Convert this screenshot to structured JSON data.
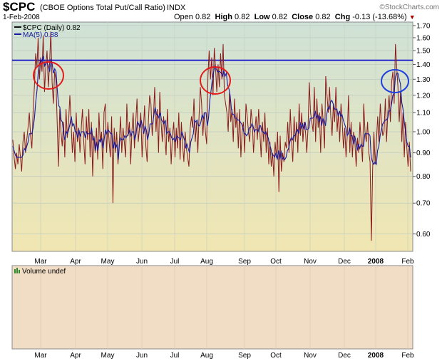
{
  "header": {
    "ticker": "$CPC",
    "description": "(CBOE Options Total Put/Call Ratio)",
    "exchange": "INDX",
    "brand": "©StockCharts.com",
    "date": "1-Feb-2008",
    "open_label": "Open",
    "open_value": "0.82",
    "high_label": "High",
    "high_value": "0.82",
    "low_label": "Low",
    "low_value": "0.82",
    "close_label": "Close",
    "close_value": "0.82",
    "chg_label": "Chg",
    "chg_value": "-0.13 (-13.68%)",
    "chg_icon": "down-triangle-icon"
  },
  "legend": {
    "series1": "$CPC (Daily) 0.82",
    "series2": "MA(5) 0.88",
    "volume": "Volume undef"
  },
  "colors": {
    "cpc_line": "#8b1a1a",
    "ma_line": "#1a1aa0",
    "threshold_line": "#0000c8",
    "red_circle": "#e41a1a",
    "blue_circle": "#1f3fe0",
    "bg_top": "#cfe2d6",
    "bg_bottom": "#f1e6b2",
    "volume_bg": "#f1dcc5"
  },
  "chart_data": {
    "type": "line",
    "scale": "log",
    "ylim": [
      0.55,
      1.73
    ],
    "yticks": [
      "1.70",
      "1.60",
      "1.50",
      "1.40",
      "1.30",
      "1.20",
      "1.10",
      "1.00",
      "0.90",
      "0.80",
      "0.70",
      "0.60"
    ],
    "xticks": [
      "Mar",
      "Apr",
      "May",
      "Jun",
      "Jul",
      "Aug",
      "Sep",
      "Oct",
      "Nov",
      "Dec",
      "2008",
      "Feb"
    ],
    "threshold": 1.43,
    "series": [
      {
        "name": "$CPC (Daily)",
        "values": [
          0.96,
          0.88,
          0.83,
          0.9,
          0.85,
          0.94,
          0.88,
          0.82,
          0.95,
          1.0,
          0.9,
          0.96,
          1.02,
          1.1,
          0.98,
          0.92,
          1.1,
          1.25,
          1.48,
          1.38,
          1.6,
          1.3,
          1.45,
          1.35,
          1.62,
          1.22,
          1.38,
          1.5,
          1.25,
          1.4,
          1.65,
          1.28,
          1.15,
          1.35,
          1.3,
          1.05,
          0.84,
          1.12,
          1.0,
          0.93,
          1.05,
          0.88,
          1.12,
          0.97,
          1.05,
          1.2,
          1.05,
          0.9,
          1.0,
          0.86,
          1.1,
          0.95,
          1.02,
          0.9,
          1.02,
          1.12,
          0.95,
          0.85,
          1.08,
          0.96,
          1.12,
          0.88,
          1.05,
          0.8,
          0.98,
          0.9,
          1.02,
          0.87,
          1.1,
          0.95,
          1.0,
          0.83,
          1.1,
          1.15,
          0.9,
          1.05,
          0.95,
          0.88,
          1.08,
          0.7,
          1.02,
          0.9,
          1.0,
          0.85,
          0.95,
          1.08,
          0.9,
          1.02,
          0.95,
          0.88,
          1.15,
          0.98,
          1.05,
          0.85,
          1.0,
          1.1,
          0.92,
          1.05,
          1.18,
          0.95,
          1.02,
          1.1,
          0.88,
          1.0,
          1.14,
          0.93,
          0.86,
          1.05,
          1.2,
          1.15,
          0.98,
          1.08,
          1.25,
          1.0,
          1.12,
          0.9,
          1.22,
          1.05,
          0.95,
          1.08,
          0.98,
          0.89,
          1.12,
          0.95,
          1.02,
          0.85,
          0.98,
          1.05,
          0.88,
          1.02,
          0.92,
          1.1,
          0.87,
          1.05,
          0.94,
          0.86,
          1.0,
          0.92,
          0.88,
          0.84,
          1.02,
          1.08,
          1.02,
          1.18,
          0.95,
          1.05,
          0.9,
          1.08,
          1.25,
          1.15,
          0.98,
          1.1,
          1.0,
          0.94,
          1.32,
          1.5,
          1.3,
          1.45,
          1.2,
          1.52,
          1.38,
          1.22,
          1.4,
          1.25,
          1.48,
          1.3,
          1.55,
          1.2,
          1.15,
          1.1,
          1.0,
          1.22,
          1.05,
          1.12,
          0.95,
          1.18,
          1.02,
          1.1,
          0.92,
          1.12,
          0.88,
          1.0,
          1.05,
          0.9,
          1.15,
          1.08,
          1.0,
          0.95,
          1.12,
          1.05,
          0.9,
          1.0,
          1.08,
          0.96,
          1.12,
          1.0,
          0.88,
          1.05,
          0.95,
          1.1,
          0.9,
          1.02,
          0.85,
          0.95,
          0.84,
          0.9,
          0.8,
          0.95,
          0.88,
          1.0,
          0.74,
          0.98,
          0.82,
          0.9,
          0.86,
          0.95,
          0.92,
          1.05,
          0.9,
          1.12,
          0.95,
          0.86,
          1.08,
          0.95,
          1.05,
          0.9,
          1.15,
          0.98,
          1.1,
          0.95,
          1.05,
          1.0,
          0.9,
          1.02,
          1.28,
          1.1,
          1.05,
          1.0,
          1.25,
          0.95,
          1.18,
          1.02,
          1.1,
          0.9,
          1.15,
          1.05,
          0.92,
          1.32,
          1.2,
          1.1,
          1.25,
          1.08,
          0.98,
          1.15,
          1.05,
          1.25,
          1.0,
          1.1,
          0.95,
          1.15,
          1.05,
          0.92,
          1.02,
          0.88,
          0.98,
          1.2,
          0.9,
          1.05,
          0.88,
          1.0,
          0.95,
          0.84,
          0.97,
          0.9,
          1.05,
          0.95,
          0.86,
          1.15,
          1.0,
          0.95,
          1.05,
          0.9,
          0.86,
          0.58,
          0.83,
          1.0,
          0.85,
          0.95,
          1.08,
          0.95,
          1.15,
          1.05,
          0.98,
          1.0,
          1.18,
          0.95,
          1.1,
          1.2,
          1.05,
          1.28,
          1.35,
          1.15,
          1.55,
          1.38,
          1.25,
          1.05,
          1.22,
          0.95,
          1.1,
          0.88,
          1.05,
          0.92,
          0.84,
          0.95,
          0.82
        ]
      },
      {
        "name": "MA(5)",
        "values": [
          0.93,
          0.91,
          0.89,
          0.88,
          0.88,
          0.88,
          0.88,
          0.88,
          0.89,
          0.92,
          0.91,
          0.93,
          0.95,
          0.99,
          0.99,
          0.99,
          1.02,
          1.07,
          1.16,
          1.23,
          1.35,
          1.4,
          1.44,
          1.42,
          1.46,
          1.39,
          1.41,
          1.41,
          1.39,
          1.35,
          1.44,
          1.4,
          1.34,
          1.37,
          1.35,
          1.23,
          1.14,
          1.13,
          1.06,
          1.05,
          0.99,
          0.96,
          1.0,
          0.99,
          1.01,
          1.04,
          1.08,
          1.03,
          1.04,
          1.0,
          1.0,
          0.97,
          1.01,
          0.98,
          1.0,
          1.0,
          1.0,
          0.97,
          1.0,
          0.99,
          0.99,
          0.99,
          1.02,
          0.96,
          0.97,
          0.91,
          0.95,
          0.91,
          0.96,
          0.95,
          0.97,
          0.92,
          0.97,
          1.01,
          0.99,
          1.01,
          1.0,
          0.99,
          0.99,
          0.92,
          0.95,
          0.92,
          0.94,
          0.87,
          0.95,
          0.97,
          0.96,
          0.96,
          0.98,
          0.97,
          0.98,
          0.99,
          1.01,
          0.98,
          1.0,
          1.0,
          0.96,
          0.99,
          1.05,
          1.04,
          1.02,
          1.06,
          1.03,
          0.99,
          1.03,
          1.01,
          0.96,
          0.99,
          1.04,
          1.04,
          1.04,
          1.09,
          1.13,
          1.09,
          1.09,
          1.07,
          1.1,
          1.06,
          1.05,
          1.04,
          1.06,
          0.99,
          1.0,
          1.0,
          0.99,
          0.97,
          0.96,
          0.97,
          0.95,
          0.98,
          0.97,
          0.97,
          0.96,
          1.0,
          0.98,
          0.96,
          0.92,
          0.94,
          0.92,
          0.9,
          0.95,
          0.97,
          0.99,
          1.06,
          1.05,
          1.06,
          1.03,
          1.03,
          1.05,
          1.09,
          1.07,
          1.1,
          1.1,
          1.03,
          1.07,
          1.17,
          1.23,
          1.3,
          1.35,
          1.39,
          1.37,
          1.35,
          1.35,
          1.35,
          1.34,
          1.32,
          1.36,
          1.32,
          1.34,
          1.26,
          1.24,
          1.2,
          1.12,
          1.09,
          1.09,
          1.07,
          1.07,
          1.06,
          1.06,
          1.05,
          1.04,
          1.02,
          0.99,
          0.99,
          0.98,
          0.99,
          1.02,
          1.02,
          1.04,
          1.03,
          1.0,
          1.01,
          1.01,
          1.0,
          1.03,
          1.03,
          1.0,
          1.0,
          0.99,
          1.0,
          0.98,
          0.97,
          0.94,
          0.92,
          0.89,
          0.89,
          0.88,
          0.9,
          0.87,
          0.91,
          0.87,
          0.91,
          0.87,
          0.88,
          0.87,
          0.88,
          0.91,
          0.92,
          0.95,
          0.97,
          0.96,
          0.98,
          0.98,
          1.0,
          1.01,
          0.99,
          1.05,
          1.02,
          1.04,
          1.01,
          1.05,
          1.01,
          1.01,
          1.02,
          1.07,
          1.07,
          1.07,
          1.08,
          1.11,
          1.07,
          1.09,
          1.05,
          1.08,
          1.03,
          1.07,
          1.05,
          1.03,
          1.09,
          1.13,
          1.12,
          1.16,
          1.17,
          1.15,
          1.12,
          1.12,
          1.12,
          1.08,
          1.11,
          1.08,
          1.09,
          1.06,
          1.04,
          1.02,
          0.98,
          0.99,
          1.02,
          0.98,
          0.98,
          0.94,
          0.98,
          0.95,
          0.91,
          0.94,
          0.92,
          0.94,
          0.93,
          0.93,
          0.99,
          0.99,
          0.99,
          0.99,
          0.98,
          0.88,
          0.86,
          0.85,
          0.86,
          0.85,
          0.91,
          0.93,
          0.98,
          1.01,
          1.04,
          1.05,
          1.06,
          1.06,
          1.07,
          1.11,
          1.11,
          1.15,
          1.2,
          1.21,
          1.31,
          1.34,
          1.34,
          1.3,
          1.27,
          1.16,
          1.12,
          1.05,
          1.0,
          0.95,
          0.93,
          0.93,
          0.88
        ]
      }
    ]
  }
}
